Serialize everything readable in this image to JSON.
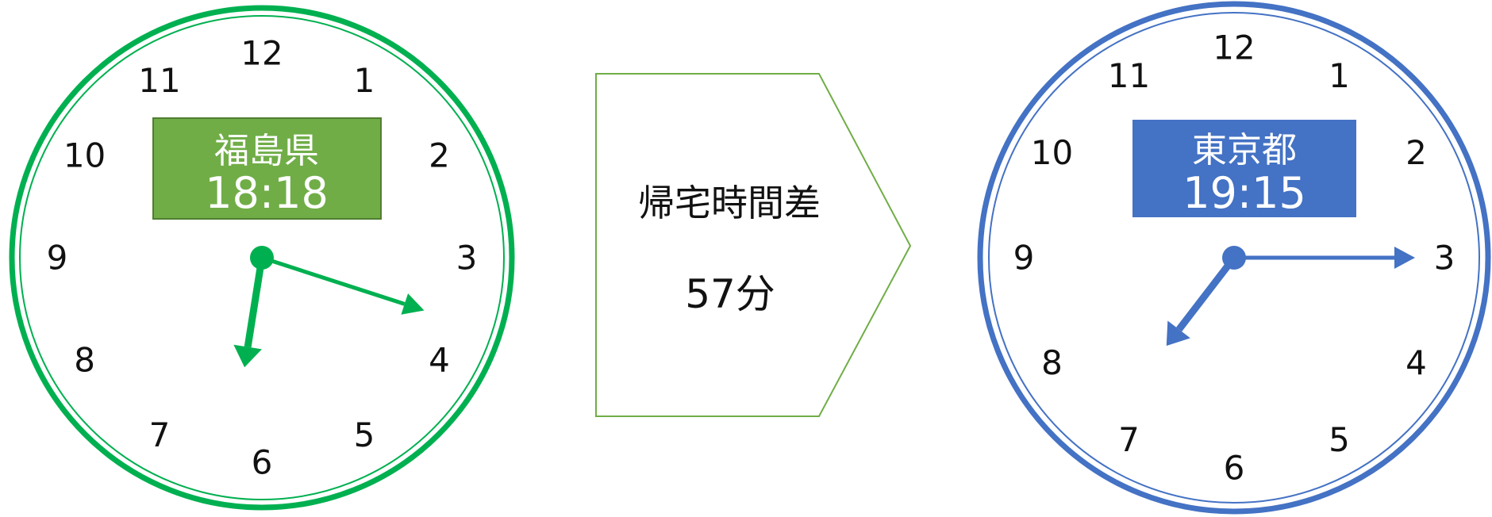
{
  "clocks": [
    {
      "id": "fukushima",
      "region": "福島県",
      "time": "18:18",
      "hour": 18,
      "minute": 18,
      "color": "#00b050",
      "label_bg": "#70ad47",
      "numbers": [
        "12",
        "1",
        "2",
        "3",
        "4",
        "5",
        "6",
        "7",
        "8",
        "9",
        "10",
        "11"
      ]
    },
    {
      "id": "tokyo",
      "region": "東京都",
      "time": "19:15",
      "hour": 19,
      "minute": 15,
      "color": "#4472c4",
      "label_bg": "#4472c4",
      "numbers": [
        "12",
        "1",
        "2",
        "3",
        "4",
        "5",
        "6",
        "7",
        "8",
        "9",
        "10",
        "11"
      ]
    }
  ],
  "difference": {
    "title": "帰宅時間差",
    "value": "57分",
    "border_color": "#70ad47"
  }
}
